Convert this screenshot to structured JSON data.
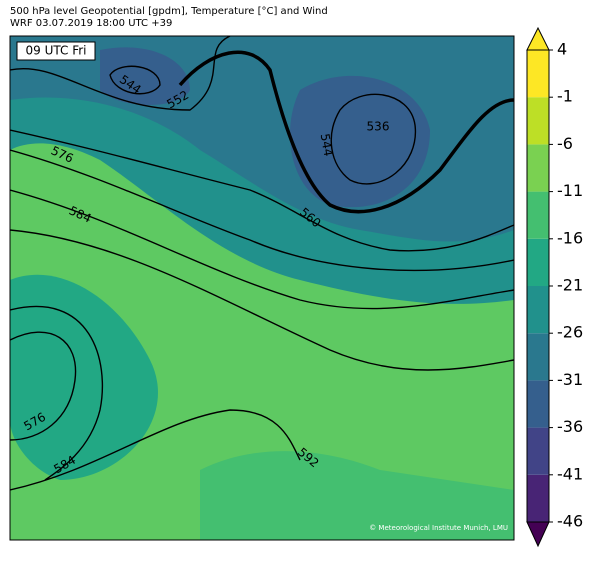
{
  "header": {
    "title": "500 hPa level Geopotential [gpdm], Temperature [°C] and Wind",
    "subtitle": "WRF 03.07.2019 18:00 UTC +39"
  },
  "map": {
    "time_label": "09 UTC Fri",
    "copyright": "© Meteorological Institute Munich, LMU",
    "contour_labels": [
      544,
      552,
      536,
      544,
      560,
      576,
      584,
      576,
      584,
      592
    ]
  },
  "colorbar": {
    "clim": [
      -46,
      4
    ],
    "ticks": [
      4,
      -1,
      -6,
      -11,
      -16,
      -21,
      -26,
      -31,
      -36,
      -41,
      -46
    ],
    "colors": [
      "#440154",
      "#482475",
      "#414487",
      "#355f8d",
      "#2a788e",
      "#21918c",
      "#22a884",
      "#44bf70",
      "#7ad151",
      "#bddf26",
      "#fde725"
    ]
  }
}
